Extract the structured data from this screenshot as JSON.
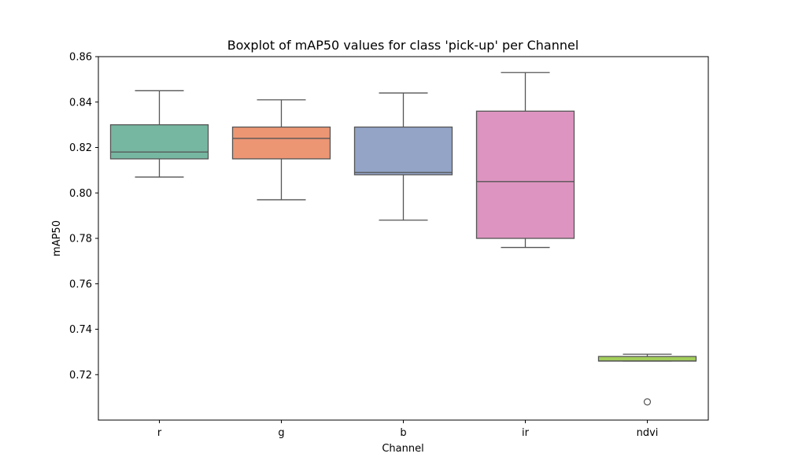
{
  "chart_data": {
    "type": "box",
    "title": "Boxplot of mAP50 values for class 'pick-up' per Channel",
    "xlabel": "Channel",
    "ylabel": "mAP50",
    "ylim": [
      0.7,
      0.86
    ],
    "yticks": [
      0.72,
      0.74,
      0.76,
      0.78,
      0.8,
      0.82,
      0.84,
      0.86
    ],
    "ytick_labels": [
      "0.72",
      "0.74",
      "0.76",
      "0.78",
      "0.80",
      "0.82",
      "0.84",
      "0.86"
    ],
    "grid": false,
    "categories": [
      "r",
      "g",
      "b",
      "ir",
      "ndvi"
    ],
    "boxes": [
      {
        "category": "r",
        "whisker_low": 0.807,
        "q1": 0.815,
        "median": 0.818,
        "q3": 0.83,
        "whisker_high": 0.845,
        "outliers": [],
        "color": "#76b7a1"
      },
      {
        "category": "g",
        "whisker_low": 0.797,
        "q1": 0.815,
        "median": 0.824,
        "q3": 0.829,
        "whisker_high": 0.841,
        "outliers": [],
        "color": "#ec9674"
      },
      {
        "category": "b",
        "whisker_low": 0.788,
        "q1": 0.808,
        "median": 0.809,
        "q3": 0.829,
        "whisker_high": 0.844,
        "outliers": [],
        "color": "#93a4c7"
      },
      {
        "category": "ir",
        "whisker_low": 0.776,
        "q1": 0.78,
        "median": 0.805,
        "q3": 0.836,
        "whisker_high": 0.853,
        "outliers": [],
        "color": "#dd94c0"
      },
      {
        "category": "ndvi",
        "whisker_low": 0.726,
        "q1": 0.726,
        "median": 0.726,
        "q3": 0.728,
        "whisker_high": 0.729,
        "outliers": [
          0.708
        ],
        "color": "#a2cd5a"
      }
    ],
    "line_color": "#555555"
  }
}
